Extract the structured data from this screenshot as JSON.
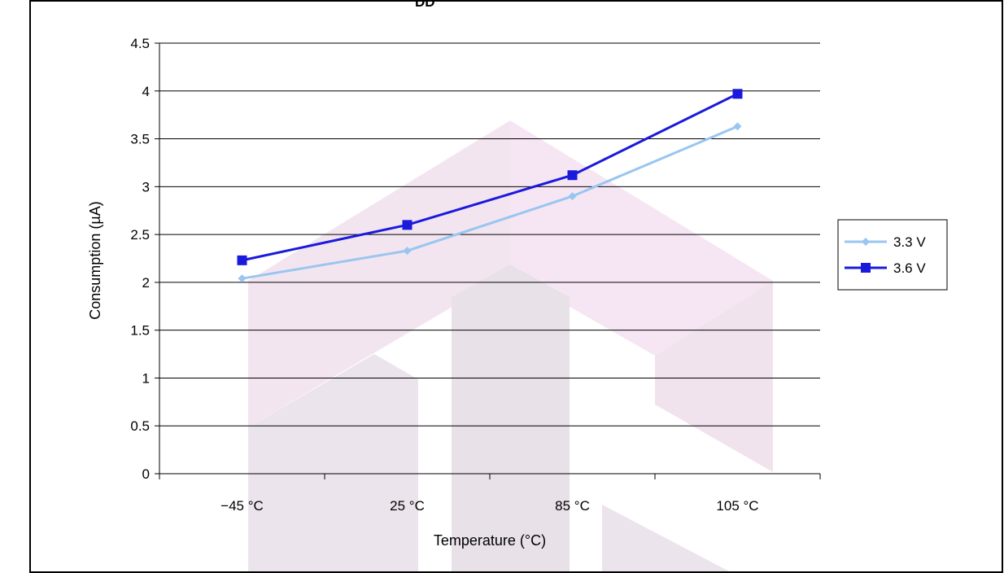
{
  "chart_data": {
    "type": "line",
    "categories": [
      "−45 °C",
      "25 °C",
      "85 °C",
      "105 °C"
    ],
    "series": [
      {
        "name": "3.3 V",
        "values": [
          2.04,
          2.33,
          2.9,
          3.63
        ],
        "color": "#99c6f0",
        "marker": "diamond"
      },
      {
        "name": "3.6 V",
        "values": [
          2.23,
          2.6,
          3.12,
          3.97
        ],
        "color": "#1a1adc",
        "marker": "square"
      }
    ],
    "xlabel": "Temperature (°C)",
    "ylabel": "Consumption (µA)",
    "ylim": [
      0,
      4.5
    ],
    "yticks": [
      "0",
      "0.5",
      "1",
      "1.5",
      "2",
      "2.5",
      "3",
      "3.5",
      "4",
      "4.5"
    ],
    "grid": true,
    "legend_position": "right"
  },
  "header_fragment": "DD"
}
